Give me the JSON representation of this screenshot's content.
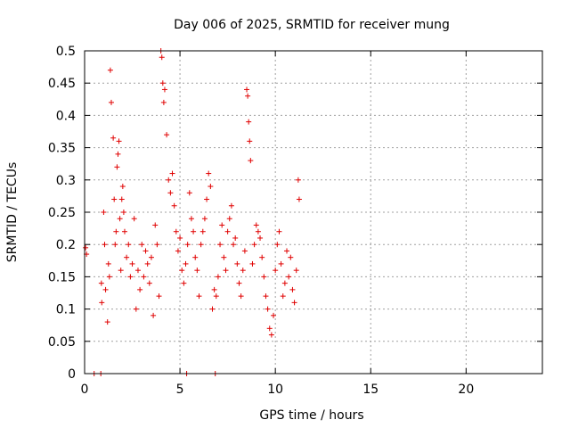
{
  "chart_data": {
    "type": "scatter",
    "title": "Day 006 of 2025, SRMTID for receiver mung",
    "xlabel": "GPS time / hours",
    "ylabel": "SRMTID / TECUs",
    "xlim": [
      0,
      24
    ],
    "ylim": [
      0,
      0.5
    ],
    "xticks": [
      0,
      5,
      10,
      15,
      20
    ],
    "xtick_labels": [
      "0",
      "5",
      "10",
      "15",
      "20"
    ],
    "yticks": [
      0,
      0.05,
      0.1,
      0.15,
      0.2,
      0.25,
      0.3,
      0.35,
      0.4,
      0.45,
      0.5
    ],
    "ytick_labels": [
      "0",
      "0.05",
      "0.1",
      "0.15",
      "0.2",
      "0.25",
      "0.3",
      "0.35",
      "0.4",
      "0.45",
      "0.5"
    ],
    "grid": true,
    "marker": "+",
    "series": [
      {
        "name": "SRMTID",
        "color": "#e00000",
        "x": [
          0.05,
          0.1,
          0.5,
          0.85,
          0.88,
          0.9,
          1.0,
          1.05,
          1.1,
          1.2,
          1.25,
          1.3,
          1.35,
          1.4,
          1.5,
          1.55,
          1.6,
          1.65,
          1.7,
          1.75,
          1.8,
          1.85,
          1.9,
          1.95,
          2.0,
          2.05,
          2.1,
          2.2,
          2.3,
          2.4,
          2.5,
          2.6,
          2.7,
          2.8,
          2.9,
          3.0,
          3.1,
          3.2,
          3.3,
          3.4,
          3.5,
          3.6,
          3.7,
          3.8,
          3.9,
          4.0,
          4.05,
          4.1,
          4.15,
          4.2,
          4.3,
          4.4,
          4.5,
          4.6,
          4.7,
          4.8,
          4.9,
          5.0,
          5.1,
          5.2,
          5.3,
          5.35,
          5.4,
          5.5,
          5.6,
          5.7,
          5.8,
          5.9,
          6.0,
          6.1,
          6.2,
          6.3,
          6.4,
          6.5,
          6.6,
          6.7,
          6.8,
          6.85,
          6.9,
          7.0,
          7.1,
          7.2,
          7.3,
          7.4,
          7.5,
          7.6,
          7.7,
          7.8,
          7.9,
          8.0,
          8.1,
          8.2,
          8.3,
          8.4,
          8.5,
          8.55,
          8.6,
          8.65,
          8.7,
          8.8,
          8.9,
          9.0,
          9.1,
          9.2,
          9.3,
          9.4,
          9.5,
          9.6,
          9.7,
          9.8,
          9.9,
          10.0,
          10.1,
          10.2,
          10.3,
          10.4,
          10.5,
          10.6,
          10.7,
          10.8,
          10.9,
          11.0,
          11.1,
          11.2,
          11.25
        ],
        "y": [
          0.195,
          0.185,
          0.0,
          0.0,
          0.14,
          0.11,
          0.25,
          0.2,
          0.13,
          0.08,
          0.17,
          0.15,
          0.47,
          0.42,
          0.365,
          0.27,
          0.2,
          0.22,
          0.32,
          0.34,
          0.36,
          0.24,
          0.16,
          0.27,
          0.29,
          0.25,
          0.22,
          0.18,
          0.2,
          0.15,
          0.17,
          0.24,
          0.1,
          0.16,
          0.13,
          0.2,
          0.15,
          0.19,
          0.17,
          0.14,
          0.18,
          0.09,
          0.23,
          0.2,
          0.12,
          0.5,
          0.49,
          0.45,
          0.42,
          0.44,
          0.37,
          0.3,
          0.28,
          0.31,
          0.26,
          0.22,
          0.19,
          0.21,
          0.16,
          0.14,
          0.17,
          0.0,
          0.2,
          0.28,
          0.24,
          0.22,
          0.18,
          0.16,
          0.12,
          0.2,
          0.22,
          0.24,
          0.27,
          0.31,
          0.29,
          0.1,
          0.13,
          0.0,
          0.12,
          0.15,
          0.2,
          0.23,
          0.18,
          0.16,
          0.22,
          0.24,
          0.26,
          0.2,
          0.21,
          0.17,
          0.14,
          0.12,
          0.16,
          0.19,
          0.44,
          0.43,
          0.39,
          0.36,
          0.33,
          0.17,
          0.2,
          0.23,
          0.22,
          0.21,
          0.18,
          0.15,
          0.12,
          0.1,
          0.07,
          0.06,
          0.09,
          0.16,
          0.2,
          0.22,
          0.17,
          0.12,
          0.14,
          0.19,
          0.15,
          0.18,
          0.13,
          0.11,
          0.16,
          0.3,
          0.27
        ]
      }
    ]
  }
}
